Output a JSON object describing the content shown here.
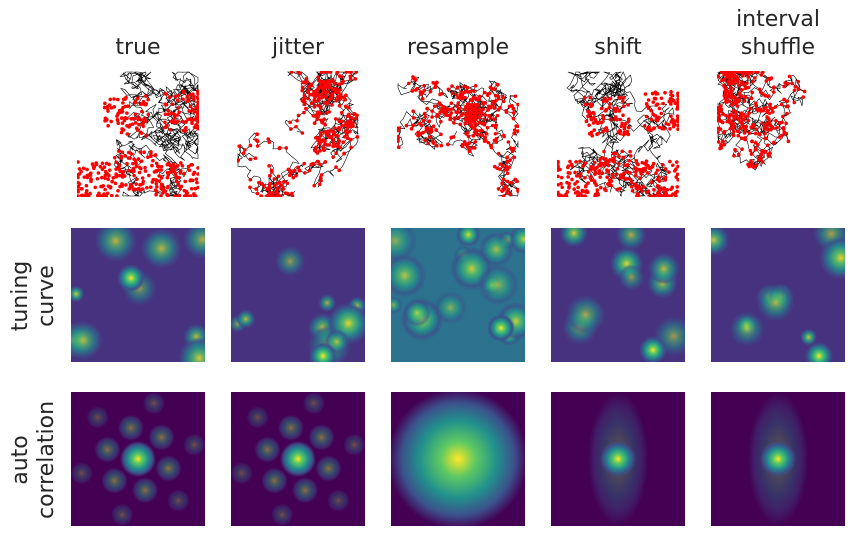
{
  "columns": [
    {
      "title": "true"
    },
    {
      "title": "jitter"
    },
    {
      "title": "resample"
    },
    {
      "title": "shift"
    },
    {
      "title": "interval\nshuffle",
      "title_line1": "interval",
      "title_line2": "shuffle"
    }
  ],
  "rows": [
    {
      "label": ""
    },
    {
      "label_line1": "tuning",
      "label_line2": "curve"
    },
    {
      "label_line1": "auto",
      "label_line2": "correlation"
    }
  ],
  "colors": {
    "trajectory": "#000000",
    "spikes": "#ff0000",
    "colormap": "viridis"
  }
}
